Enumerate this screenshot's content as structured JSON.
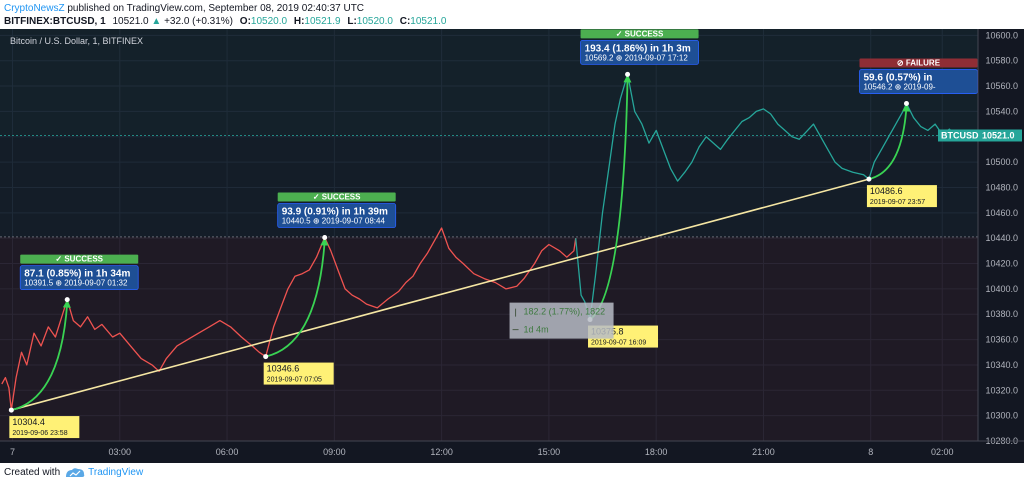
{
  "header": {
    "author": "CryptoNewsZ",
    "published": "published on TradingView.com, September 08, 2019 02:40:37 UTC",
    "symbol": "BITFINEX:BTCUSD, 1",
    "last": "10521.0",
    "change": "+32.0 (+0.31%)",
    "ohlc": {
      "o_label": "O:",
      "o": "10520.0",
      "h_label": "H:",
      "h": "10521.9",
      "l_label": "L:",
      "l": "10520.0",
      "c_label": "C:",
      "c": "10521.0"
    }
  },
  "footer": {
    "created_with": "Created with",
    "brand": "TradingView"
  },
  "colors": {
    "background": "#131722",
    "down_segment": "#ef5350",
    "up_segment": "#26a69a",
    "trendline": "#f5e6a3",
    "arrow": "#39d353",
    "success": "#4caf50",
    "failure": "#8f2d35",
    "annotation_box": "#1e4f95",
    "callout": "#fff176",
    "price_label": "#26a69a"
  },
  "chart_data": {
    "type": "line",
    "title": "Bitcoin / U.S. Dollar, 1, BITFINEX",
    "price_unit": "USD",
    "time_unit": "hours since 2019-09-07 00:00 UTC",
    "xlim": [
      -0.35,
      27
    ],
    "ylim": [
      10280,
      10605
    ],
    "y_ticks": [
      10280,
      10300,
      10320,
      10340,
      10360,
      10380,
      10400,
      10420,
      10440,
      10460,
      10480,
      10500,
      10520,
      10540,
      10560,
      10580,
      10600
    ],
    "x_ticks": [
      {
        "t": 0,
        "label": "7"
      },
      {
        "t": 3,
        "label": "03:00"
      },
      {
        "t": 6,
        "label": "06:00"
      },
      {
        "t": 9,
        "label": "09:00"
      },
      {
        "t": 12,
        "label": "12:00"
      },
      {
        "t": 15,
        "label": "15:00"
      },
      {
        "t": 18,
        "label": "18:00"
      },
      {
        "t": 21,
        "label": "21:00"
      },
      {
        "t": 24,
        "label": "8"
      },
      {
        "t": 26,
        "label": "02:00"
      }
    ],
    "grid": true,
    "horizontal_lines": [
      10521,
      10441
    ],
    "series": [
      {
        "color_segments": "red before 15:45, teal after",
        "split_t": 15.75,
        "points": [
          [
            -0.3,
            10325
          ],
          [
            -0.2,
            10330
          ],
          [
            -0.1,
            10322
          ],
          [
            -0.033,
            10304.4
          ],
          [
            0.1,
            10330
          ],
          [
            0.25,
            10350
          ],
          [
            0.4,
            10340
          ],
          [
            0.6,
            10365
          ],
          [
            0.8,
            10355
          ],
          [
            1.0,
            10370
          ],
          [
            1.2,
            10362
          ],
          [
            1.4,
            10380
          ],
          [
            1.53,
            10391.5
          ],
          [
            1.7,
            10375
          ],
          [
            1.9,
            10370
          ],
          [
            2.1,
            10378
          ],
          [
            2.3,
            10368
          ],
          [
            2.5,
            10372
          ],
          [
            2.8,
            10362
          ],
          [
            3.0,
            10365
          ],
          [
            3.3,
            10355
          ],
          [
            3.6,
            10345
          ],
          [
            3.9,
            10340
          ],
          [
            4.1,
            10335
          ],
          [
            4.3,
            10345
          ],
          [
            4.6,
            10355
          ],
          [
            4.9,
            10360
          ],
          [
            5.2,
            10365
          ],
          [
            5.5,
            10370
          ],
          [
            5.8,
            10375
          ],
          [
            6.1,
            10370
          ],
          [
            6.4,
            10362
          ],
          [
            6.7,
            10355
          ],
          [
            6.9,
            10350
          ],
          [
            7.08,
            10346.6
          ],
          [
            7.3,
            10370
          ],
          [
            7.5,
            10385
          ],
          [
            7.7,
            10400
          ],
          [
            7.9,
            10410
          ],
          [
            8.1,
            10412
          ],
          [
            8.3,
            10415
          ],
          [
            8.5,
            10425
          ],
          [
            8.73,
            10440.5
          ],
          [
            8.9,
            10430
          ],
          [
            9.1,
            10415
          ],
          [
            9.3,
            10400
          ],
          [
            9.5,
            10395
          ],
          [
            9.7,
            10392
          ],
          [
            9.9,
            10388
          ],
          [
            10.2,
            10385
          ],
          [
            10.5,
            10392
          ],
          [
            10.8,
            10398
          ],
          [
            11.0,
            10405
          ],
          [
            11.2,
            10410
          ],
          [
            11.4,
            10420
          ],
          [
            11.6,
            10428
          ],
          [
            11.8,
            10438
          ],
          [
            12.0,
            10448
          ],
          [
            12.2,
            10432
          ],
          [
            12.4,
            10425
          ],
          [
            12.6,
            10420
          ],
          [
            12.9,
            10412
          ],
          [
            13.2,
            10408
          ],
          [
            13.5,
            10405
          ],
          [
            13.8,
            10400
          ],
          [
            14.1,
            10402
          ],
          [
            14.3,
            10408
          ],
          [
            14.6,
            10420
          ],
          [
            14.8,
            10430
          ],
          [
            15.0,
            10435
          ],
          [
            15.3,
            10430
          ],
          [
            15.5,
            10425
          ],
          [
            15.7,
            10430
          ],
          [
            15.75,
            10440
          ],
          [
            15.9,
            10395
          ],
          [
            16.0,
            10390
          ],
          [
            16.15,
            10375.8
          ],
          [
            16.3,
            10410
          ],
          [
            16.5,
            10460
          ],
          [
            16.7,
            10500
          ],
          [
            16.85,
            10530
          ],
          [
            17.0,
            10550
          ],
          [
            17.2,
            10569.2
          ],
          [
            17.4,
            10540
          ],
          [
            17.6,
            10530
          ],
          [
            17.8,
            10515
          ],
          [
            18.0,
            10525
          ],
          [
            18.2,
            10510
          ],
          [
            18.4,
            10495
          ],
          [
            18.6,
            10485
          ],
          [
            18.8,
            10492
          ],
          [
            19.0,
            10500
          ],
          [
            19.2,
            10512
          ],
          [
            19.4,
            10520
          ],
          [
            19.6,
            10515
          ],
          [
            19.8,
            10510
          ],
          [
            20.0,
            10518
          ],
          [
            20.2,
            10525
          ],
          [
            20.4,
            10532
          ],
          [
            20.6,
            10535
          ],
          [
            20.8,
            10540
          ],
          [
            21.0,
            10542
          ],
          [
            21.2,
            10538
          ],
          [
            21.4,
            10530
          ],
          [
            21.6,
            10525
          ],
          [
            21.8,
            10520
          ],
          [
            22.0,
            10518
          ],
          [
            22.2,
            10524
          ],
          [
            22.4,
            10530
          ],
          [
            22.6,
            10520
          ],
          [
            22.8,
            10510
          ],
          [
            23.0,
            10500
          ],
          [
            23.2,
            10495
          ],
          [
            23.5,
            10492
          ],
          [
            23.8,
            10490
          ],
          [
            23.95,
            10486.6
          ],
          [
            24.1,
            10500
          ],
          [
            24.3,
            10510
          ],
          [
            24.5,
            10520
          ],
          [
            24.7,
            10530
          ],
          [
            24.9,
            10540
          ],
          [
            25.0,
            10546.2
          ],
          [
            25.2,
            10535
          ],
          [
            25.4,
            10528
          ],
          [
            25.6,
            10525
          ],
          [
            25.8,
            10530
          ],
          [
            26.0,
            10522
          ],
          [
            26.2,
            10526
          ],
          [
            26.4,
            10520
          ],
          [
            26.58,
            10521
          ]
        ]
      }
    ],
    "trendline": {
      "from": {
        "t": -0.033,
        "price": 10304.4
      },
      "to": {
        "t": 23.95,
        "price": 10486.6
      }
    },
    "callouts": [
      {
        "t": -0.033,
        "price": 10304.4,
        "value": "10304.4",
        "date": "2019-09-06 23:58"
      },
      {
        "t": 7.08,
        "price": 10346.6,
        "value": "10346.6",
        "date": "2019-09-07 07:05"
      },
      {
        "t": 16.15,
        "price": 10375.8,
        "value": "10375.8",
        "date": "2019-09-07 16:09"
      },
      {
        "t": 23.95,
        "price": 10486.6,
        "value": "10486.6",
        "date": "2019-09-07 23:57"
      }
    ],
    "moves": [
      {
        "from_t": -0.033,
        "from_p": 10304.4,
        "to_t": 1.53,
        "to_p": 10391.5,
        "result": "SUCCESS",
        "text": "87.1 (0.85%) in 1h 34m",
        "sub": "10391.5 ⊕ 2019-09-07 01:32"
      },
      {
        "from_t": 7.08,
        "from_p": 10346.6,
        "to_t": 8.73,
        "to_p": 10440.5,
        "result": "SUCCESS",
        "text": "93.9 (0.91%) in 1h 39m",
        "sub": "10440.5 ⊕ 2019-09-07 08:44"
      },
      {
        "from_t": 16.15,
        "from_p": 10375.8,
        "to_t": 17.2,
        "to_p": 10569.2,
        "result": "SUCCESS",
        "text": "193.4 (1.86%) in 1h 3m",
        "sub": "10569.2 ⊕ 2019-09-07 17:12"
      },
      {
        "from_t": 23.95,
        "from_p": 10486.6,
        "to_t": 25.0,
        "to_p": 10546.2,
        "result": "FAILURE",
        "text": "59.6 (0.57%) in",
        "sub": "10546.2 ⊕ 2019-09-"
      }
    ],
    "measure": {
      "t": 13.9,
      "price": 10386,
      "line1": "182.2 (1.77%), 1822",
      "line2": "1d 4m"
    },
    "price_label": {
      "symbol": "BTCUSD",
      "value": "10521.0",
      "price": 10521
    }
  }
}
